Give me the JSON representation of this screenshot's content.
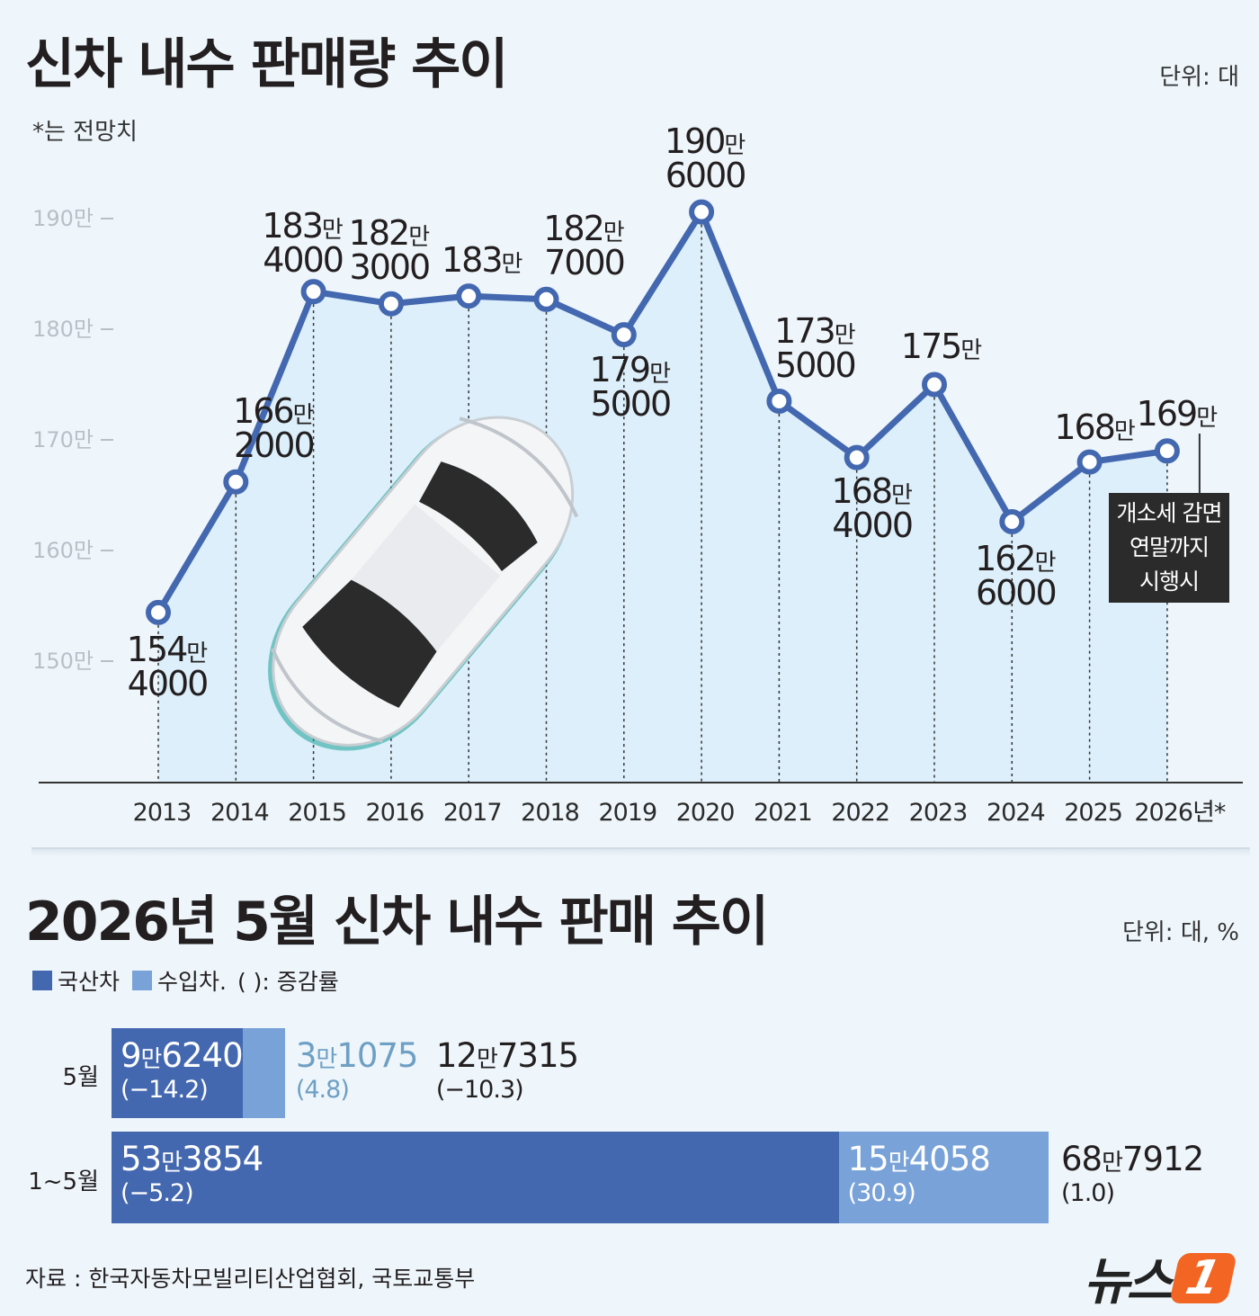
{
  "chart1": {
    "title": "신차 내수 판매량 추이",
    "unit": "단위: 대",
    "note": "*는 전망치",
    "callout": [
      "개소세 감면",
      "연말까지",
      "시행시"
    ]
  },
  "chart2": {
    "title": "2026년 5월 신차 내수 판매 추이",
    "unit": "단위: 대, %",
    "legend": {
      "domestic": "국산차",
      "imported": "수입차.",
      "rate": "( ): 증감률"
    }
  },
  "footer": {
    "source": "자료 : 한국자동차모빌리티산업협회, 국토교통부",
    "logo_text": "뉴스",
    "logo_badge": "1"
  },
  "colors": {
    "line": "#4468b0",
    "domestic": "#4468b0",
    "imported": "#78a2d8",
    "area": "#d6ecfa",
    "callout_bg": "#2b2b2b"
  },
  "chart_data": [
    {
      "type": "line",
      "title": "신차 내수 판매량 추이",
      "ylabel": "",
      "y_unit": "대",
      "ylim": [
        1400000,
        1910000
      ],
      "y_ticks": [
        1500000,
        1600000,
        1700000,
        1800000,
        1900000
      ],
      "y_tick_labels": [
        "150만",
        "160만",
        "170만",
        "180만",
        "190만"
      ],
      "categories": [
        "2013",
        "2014",
        "2015",
        "2016",
        "2017",
        "2018",
        "2019",
        "2020",
        "2021",
        "2022",
        "2023",
        "2024",
        "2025",
        "2026년*"
      ],
      "values": [
        1544000,
        1662000,
        1834000,
        1823000,
        1830000,
        1827000,
        1795000,
        1906000,
        1735000,
        1684000,
        1750000,
        1626000,
        1680000,
        1690000
      ],
      "data_labels": [
        [
          "154만",
          "4000"
        ],
        [
          "166만",
          "2000"
        ],
        [
          "183만",
          "4000"
        ],
        [
          "182만",
          "3000"
        ],
        [
          "183만"
        ],
        [
          "182만",
          "7000"
        ],
        [
          "179만",
          "5000"
        ],
        [
          "190만",
          "6000"
        ],
        [
          "173만",
          "5000"
        ],
        [
          "168만",
          "4000"
        ],
        [
          "175만"
        ],
        [
          "162만",
          "6000"
        ],
        [
          "168만"
        ],
        [
          "169만"
        ]
      ],
      "forecast_marker": "*",
      "grid": false
    },
    {
      "type": "bar",
      "orientation": "horizontal",
      "stacked": true,
      "title": "2026년 5월 신차 내수 판매 추이",
      "categories": [
        "5월",
        "1~5월"
      ],
      "series": [
        {
          "name": "국산차",
          "values": [
            96240,
            533854
          ],
          "labels": [
            "9만6240",
            "53만3854"
          ],
          "rates": [
            "(−14.2)",
            "(−5.2)"
          ]
        },
        {
          "name": "수입차.",
          "values": [
            31075,
            154058
          ],
          "labels": [
            "3만1075",
            "15만4058"
          ],
          "rates": [
            "(4.8)",
            "(30.9)"
          ]
        }
      ],
      "totals": [
        127315,
        687912
      ],
      "total_labels": [
        "12만7315",
        "68만7912"
      ],
      "total_rates": [
        "(−10.3)",
        "(1.0)"
      ]
    }
  ]
}
